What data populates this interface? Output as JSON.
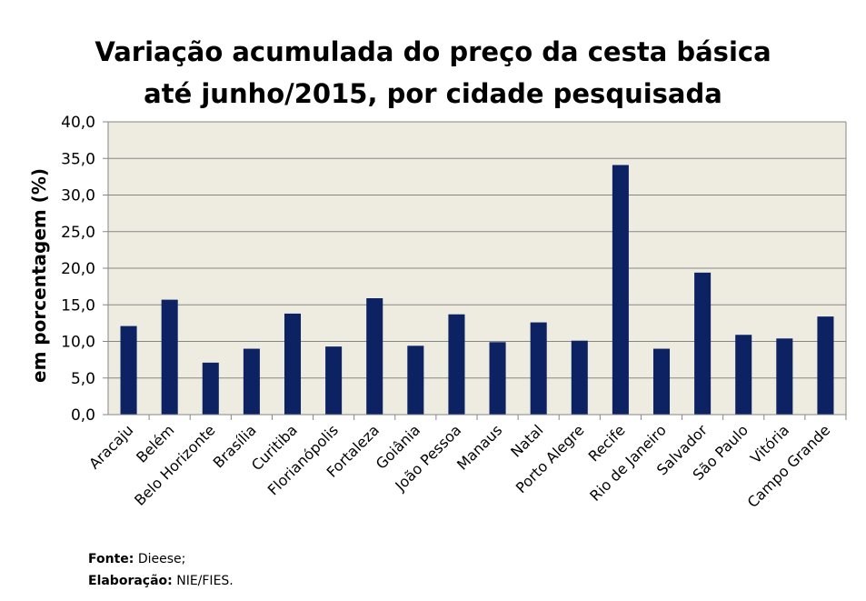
{
  "chart_data": {
    "type": "bar",
    "title_lines": [
      "Variação acumulada do preço da cesta básica",
      "até junho/2015, por cidade pesquisada"
    ],
    "ylabel": "em porcentagem (%)",
    "xlabel": "",
    "ylim": [
      0,
      40
    ],
    "ytick_step": 5,
    "ytick_labels": [
      "0,0",
      "5,0",
      "10,0",
      "15,0",
      "20,0",
      "25,0",
      "30,0",
      "35,0",
      "40,0"
    ],
    "grid": true,
    "legend": "none",
    "categories": [
      "Aracaju",
      "Belém",
      "Belo Horizonte",
      "Brasília",
      "Curitiba",
      "Florianópolis",
      "Fortaleza",
      "Goiânia",
      "João Pessoa",
      "Manaus",
      "Natal",
      "Porto Alegre",
      "Recife",
      "Rio de Janeiro",
      "Salvador",
      "São Paulo",
      "Vitória",
      "Campo Grande"
    ],
    "values": [
      12.1,
      15.7,
      7.1,
      9.0,
      13.8,
      9.3,
      15.9,
      9.4,
      13.7,
      9.9,
      12.6,
      10.1,
      34.1,
      9.0,
      19.4,
      10.9,
      10.4,
      13.4
    ]
  },
  "colors": {
    "bar": "#0d2262",
    "plot_background": "#eeece1",
    "gridline": "#868686",
    "axis": "#868686"
  },
  "footer": {
    "source_label": "Fonte:",
    "source_value": "Dieese;",
    "prepared_label": "Elaboração:",
    "prepared_value": "NIE/FIES."
  }
}
